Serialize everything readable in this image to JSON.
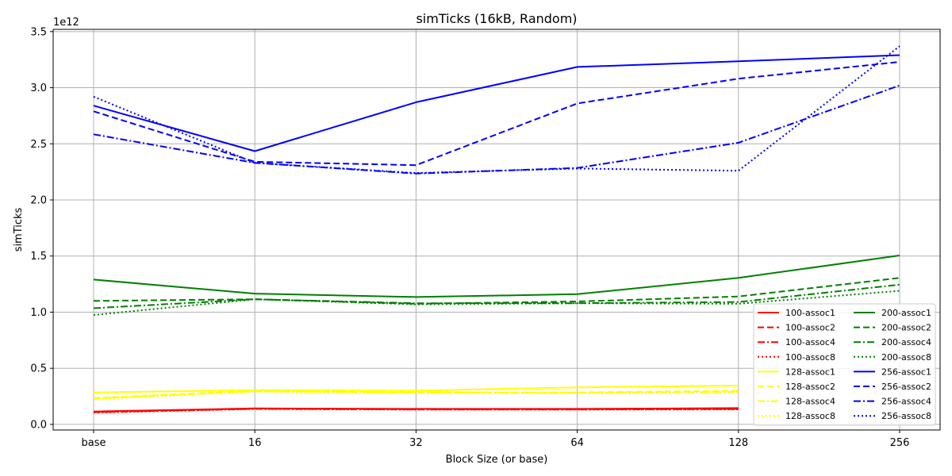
{
  "chart_data": {
    "type": "line",
    "title": "simTicks (16kB, Random)",
    "xlabel": "Block Size (or base)",
    "ylabel": "simTicks",
    "y_offset_label": "1e12",
    "categories": [
      "base",
      "16",
      "32",
      "64",
      "128",
      "256"
    ],
    "ylim": [
      -0.05,
      3.52
    ],
    "yticks": [
      0.0,
      0.5,
      1.0,
      1.5,
      2.0,
      2.5,
      3.0,
      3.5
    ],
    "ytick_labels": [
      "0.0",
      "0.5",
      "1.0",
      "1.5",
      "2.0",
      "2.5",
      "3.0",
      "3.5"
    ],
    "grid": true,
    "legend_position": "lower-right",
    "series": [
      {
        "name": "100-assoc1",
        "color": "#ff0000",
        "style": "solid",
        "values": [
          0.115,
          0.142,
          0.138,
          0.138,
          0.145,
          null
        ]
      },
      {
        "name": "100-assoc2",
        "color": "#ff0000",
        "style": "dashed",
        "values": [
          0.11,
          0.14,
          0.135,
          0.135,
          0.138,
          null
        ]
      },
      {
        "name": "100-assoc4",
        "color": "#ff0000",
        "style": "dashdot",
        "values": [
          0.108,
          0.138,
          0.133,
          0.133,
          0.136,
          null
        ]
      },
      {
        "name": "100-assoc8",
        "color": "#ff0000",
        "style": "dotted",
        "values": [
          0.105,
          0.137,
          0.132,
          0.132,
          0.134,
          null
        ]
      },
      {
        "name": "128-assoc1",
        "color": "#ffff00",
        "style": "solid",
        "values": [
          0.285,
          0.305,
          0.3,
          0.33,
          0.345,
          null
        ]
      },
      {
        "name": "128-assoc2",
        "color": "#ffff00",
        "style": "dashed",
        "values": [
          0.235,
          0.3,
          0.285,
          0.285,
          0.3,
          null
        ]
      },
      {
        "name": "128-assoc4",
        "color": "#ffff00",
        "style": "dashdot",
        "values": [
          0.23,
          0.295,
          0.282,
          0.282,
          0.29,
          null
        ]
      },
      {
        "name": "128-assoc8",
        "color": "#ffff00",
        "style": "dotted",
        "values": [
          0.225,
          0.292,
          0.28,
          0.28,
          0.285,
          null
        ]
      },
      {
        "name": "200-assoc1",
        "color": "#008000",
        "style": "solid",
        "values": [
          1.29,
          1.165,
          1.135,
          1.16,
          1.305,
          1.505
        ]
      },
      {
        "name": "200-assoc2",
        "color": "#008000",
        "style": "dashed",
        "values": [
          1.1,
          1.115,
          1.075,
          1.095,
          1.14,
          1.305
        ]
      },
      {
        "name": "200-assoc4",
        "color": "#008000",
        "style": "dashdot",
        "values": [
          1.035,
          1.115,
          1.08,
          1.08,
          1.09,
          1.245
        ]
      },
      {
        "name": "200-assoc8",
        "color": "#008000",
        "style": "dotted",
        "values": [
          0.975,
          1.115,
          1.07,
          1.08,
          1.075,
          1.19
        ]
      },
      {
        "name": "256-assoc1",
        "color": "#0000ff",
        "style": "solid",
        "values": [
          2.84,
          2.435,
          2.87,
          3.185,
          3.235,
          3.29
        ]
      },
      {
        "name": "256-assoc2",
        "color": "#0000ff",
        "style": "dashed",
        "values": [
          2.79,
          2.34,
          2.31,
          2.86,
          3.08,
          3.23
        ]
      },
      {
        "name": "256-assoc4",
        "color": "#0000ff",
        "style": "dashdot",
        "values": [
          2.585,
          2.33,
          2.235,
          2.285,
          2.51,
          3.02
        ]
      },
      {
        "name": "256-assoc8",
        "color": "#0000ff",
        "style": "dotted",
        "values": [
          2.92,
          2.33,
          2.24,
          2.28,
          2.26,
          3.37
        ]
      }
    ]
  }
}
